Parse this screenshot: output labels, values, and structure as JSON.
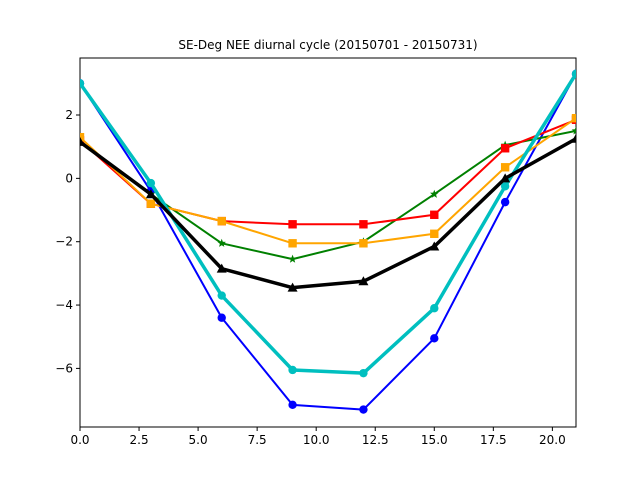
{
  "chart_data": {
    "type": "line",
    "title": "SE-Deg NEE diurnal cycle (20150701 - 20150731)",
    "xlabel": "",
    "ylabel": "",
    "xlim": [
      0,
      21
    ],
    "ylim": [
      -7.85,
      3.8
    ],
    "x": [
      0,
      3,
      6,
      9,
      12,
      15,
      18,
      21
    ],
    "xticks": [
      0.0,
      2.5,
      5.0,
      7.5,
      10.0,
      12.5,
      15.0,
      17.5,
      20.0
    ],
    "xtick_labels": [
      "0.0",
      "2.5",
      "5.0",
      "7.5",
      "10.0",
      "12.5",
      "15.0",
      "17.5",
      "20.0"
    ],
    "yticks": [
      2,
      0,
      -2,
      -4,
      -6
    ],
    "ytick_labels": [
      "2",
      "0",
      "−2",
      "−4",
      "−6"
    ],
    "grid": false,
    "legend": "none",
    "series": [
      {
        "color": "#0000ff",
        "marker": "circle",
        "linewidth": 2,
        "values": [
          3.0,
          -0.4,
          -4.4,
          -7.15,
          -7.3,
          -5.05,
          -0.75,
          3.3
        ]
      },
      {
        "color": "#008000",
        "marker": "star",
        "linewidth": 2,
        "values": [
          1.15,
          -0.5,
          -2.05,
          -2.55,
          -2.0,
          -0.5,
          1.05,
          1.5
        ]
      },
      {
        "color": "#ff0000",
        "marker": "square",
        "linewidth": 2,
        "values": [
          1.2,
          -0.8,
          -1.35,
          -1.45,
          -1.45,
          -1.15,
          0.95,
          1.85
        ]
      },
      {
        "color": "#ffa500",
        "marker": "square",
        "linewidth": 2,
        "values": [
          1.3,
          -0.8,
          -1.35,
          -2.05,
          -2.05,
          -1.75,
          0.35,
          1.9
        ]
      },
      {
        "color": "#00bfbf",
        "marker": "circle",
        "linewidth": 3.5,
        "values": [
          3.0,
          -0.15,
          -3.7,
          -6.05,
          -6.15,
          -4.1,
          -0.25,
          3.3
        ]
      },
      {
        "color": "#000000",
        "marker": "triangle",
        "linewidth": 3.5,
        "values": [
          1.15,
          -0.5,
          -2.85,
          -3.45,
          -3.25,
          -2.15,
          0.0,
          1.25
        ]
      }
    ]
  }
}
